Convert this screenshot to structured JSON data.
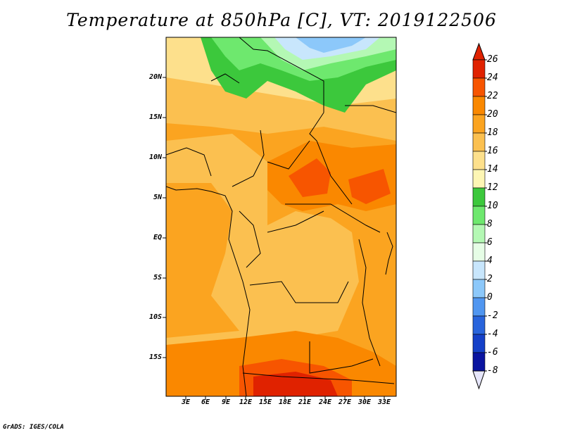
{
  "title": "Temperature at 850hPa [C], VT: 2019122506",
  "footer": "GrADS: IGES/COLA",
  "map": {
    "lat_ticks": [
      "20N",
      "15N",
      "10N",
      "5N",
      "EQ",
      "5S",
      "10S",
      "15S"
    ],
    "lon_ticks": [
      "3E",
      "6E",
      "9E",
      "12E",
      "15E",
      "18E",
      "21E",
      "24E",
      "27E",
      "30E",
      "33E"
    ]
  },
  "colorbar": {
    "labels": [
      "26",
      "24",
      "22",
      "20",
      "18",
      "16",
      "14",
      "12",
      "10",
      "8",
      "6",
      "4",
      "2",
      "0",
      "-2",
      "-4",
      "-6",
      "-8"
    ],
    "colors": [
      "#a50000",
      "#e02200",
      "#f75500",
      "#fa8800",
      "#fba420",
      "#fbc050",
      "#fde08c",
      "#fdf6b4",
      "#3cc83c",
      "#6ee86e",
      "#b4f8b4",
      "#e6fde6",
      "#c8e6fc",
      "#8cc8fa",
      "#5096f0",
      "#2864dc",
      "#1440c8",
      "#0a14a0",
      "#000064",
      "#e6e6fa"
    ],
    "color_order": "top to bottom: upper arrow, 24-26, 22-24, 20-22, 18-20, 16-18, 14-16, 12-14, 10-12, 8-10, 6-8, 4-6, 2-4, 0-2, -2-0, -4--2, -6--4, -8--6, lower arrow"
  }
}
